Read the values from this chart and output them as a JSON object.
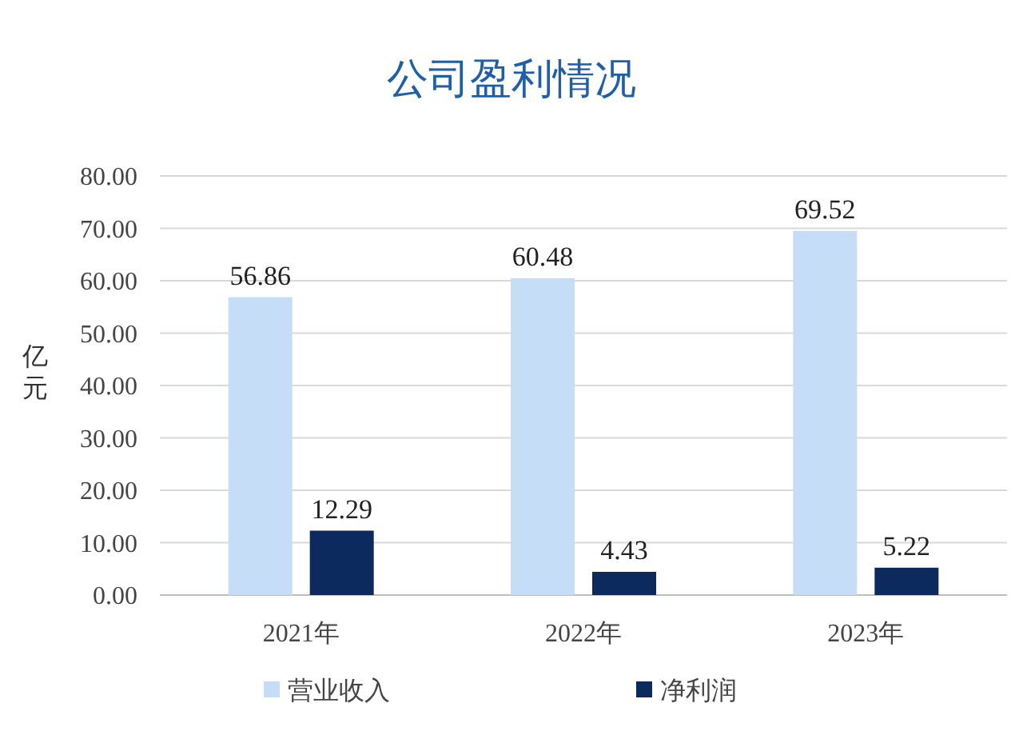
{
  "chart_data": {
    "type": "bar",
    "title": "公司盈利情况",
    "ylabel": "亿元",
    "categories": [
      "2021年",
      "2022年",
      "2023年"
    ],
    "series": [
      {
        "name": "营业收入",
        "color": "#c6ddf7",
        "values": [
          56.86,
          60.48,
          69.52
        ]
      },
      {
        "name": "净利润",
        "color": "#0c2a5e",
        "values": [
          12.29,
          4.43,
          5.22
        ]
      }
    ],
    "ylim": [
      0,
      80
    ],
    "yticks": [
      {
        "value": 0,
        "label": "0.00"
      },
      {
        "value": 10,
        "label": "10.00"
      },
      {
        "value": 20,
        "label": "20.00"
      },
      {
        "value": 30,
        "label": "30.00"
      },
      {
        "value": 40,
        "label": "40.00"
      },
      {
        "value": 50,
        "label": "50.00"
      },
      {
        "value": 60,
        "label": "60.00"
      },
      {
        "value": 70,
        "label": "70.00"
      },
      {
        "value": 80,
        "label": "80.00"
      }
    ],
    "grid": "y",
    "legend": "bottom",
    "data_labels": true
  }
}
